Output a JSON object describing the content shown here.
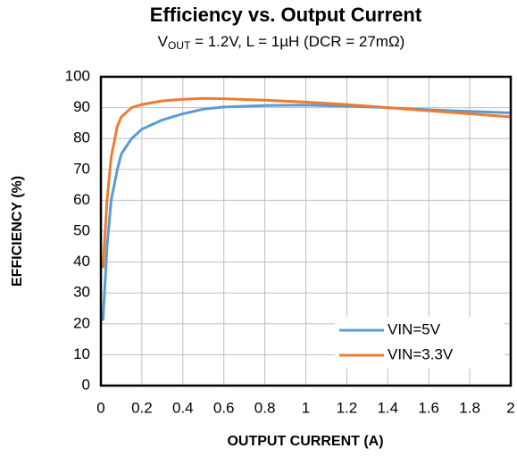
{
  "chart_data": {
    "type": "line",
    "title": "Efficiency vs. Output Current",
    "subtitle": [
      "V",
      "OUT",
      " = 1.2V, L = 1µH (DCR = 27mΩ)"
    ],
    "x_label": "OUTPUT  CURRENT  (A)",
    "y_label": "EFFICIENCY  (%)",
    "x": [
      0.01,
      0.03,
      0.05,
      0.08,
      0.1,
      0.15,
      0.2,
      0.3,
      0.4,
      0.5,
      0.6,
      0.8,
      1.0,
      1.2,
      1.4,
      1.6,
      1.8,
      2.0
    ],
    "series": [
      {
        "name": "VIN=5V",
        "color": "#5b9bd5",
        "values": [
          21,
          45,
          60,
          70,
          75,
          80,
          83,
          86,
          88,
          89.5,
          90.2,
          90.7,
          90.8,
          90.5,
          90,
          89.3,
          88.8,
          88.3
        ]
      },
      {
        "name": "VIN=3.3V",
        "color": "#ed7d31",
        "values": [
          38,
          60,
          74,
          84,
          87,
          90,
          91,
          92.2,
          92.7,
          93,
          92.9,
          92.4,
          91.8,
          91,
          90,
          89,
          88,
          87
        ]
      }
    ],
    "xlim": [
      0,
      2
    ],
    "xticks": [
      0,
      0.2,
      0.4,
      0.6,
      0.8,
      1,
      1.2,
      1.4,
      1.6,
      1.8,
      2
    ],
    "ylim": [
      0,
      100
    ],
    "yticks": [
      0,
      10,
      20,
      30,
      40,
      50,
      60,
      70,
      80,
      90,
      100
    ],
    "grid": true,
    "legend": "lower right"
  }
}
